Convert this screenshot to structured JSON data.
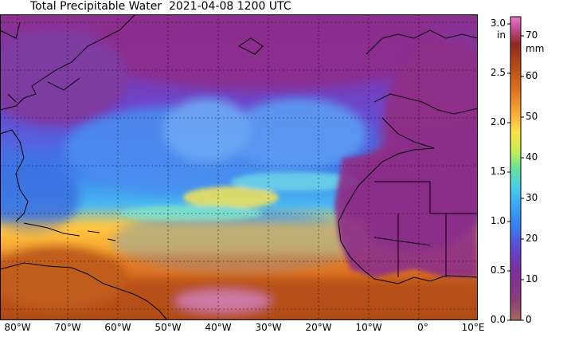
{
  "title": "Total Precipitable Water  2021-04-08 1200 UTC",
  "map": {
    "projection": "lat-lon",
    "region": "Atlantic Ocean",
    "lon_labels": [
      "80°W",
      "70°W",
      "60°W",
      "50°W",
      "40°W",
      "30°W",
      "20°W",
      "10°W",
      "0°",
      "10°E"
    ],
    "colormap": [
      "#a8606a",
      "#8b2c8c",
      "#6b3cc8",
      "#3a6ae6",
      "#3aa0ff",
      "#43c8f0",
      "#5fe0c0",
      "#b7ee55",
      "#ffe040",
      "#ffae30",
      "#e8741e",
      "#b94a12",
      "#a82a10",
      "#e060b0"
    ]
  },
  "colorbar": {
    "inch_unit": "in",
    "mm_unit": "mm",
    "inch_ticks": [
      "0.0",
      "0.5",
      "1.0",
      "1.5",
      "2.0",
      "2.5",
      "3.0"
    ],
    "mm_ticks": [
      "0",
      "10",
      "20",
      "30",
      "40",
      "50",
      "60",
      "70"
    ]
  }
}
